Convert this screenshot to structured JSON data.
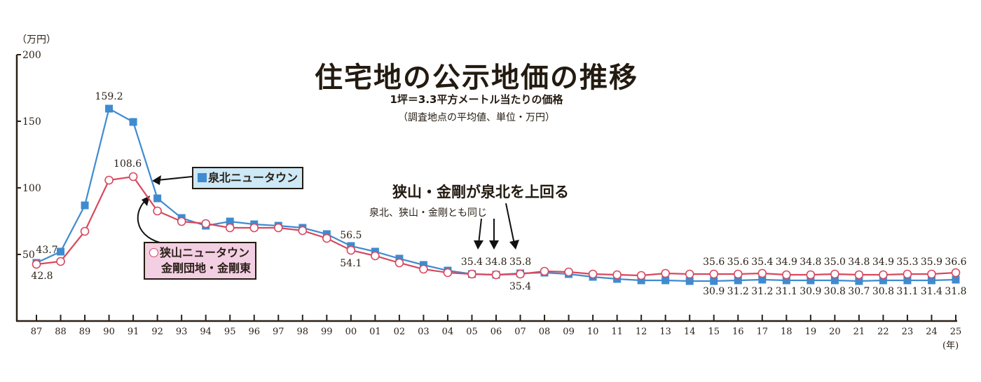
{
  "title": "住宅地の公示地価の推移",
  "subtitle": "1坪＝3.3平方メートル当たりの価格",
  "note": "（調査地点の平均値、単位・万円）",
  "y_unit": "（万円）",
  "x_unit": "(年)",
  "callout": {
    "headline": "狭山・金剛が泉北を上回る",
    "sub": "泉北、狭山・金剛とも同じ"
  },
  "legend": {
    "senboku": "泉北ニュータウン",
    "sayama_line1": "狭山ニュータウン",
    "sayama_line2": "金剛団地・金剛東"
  },
  "colors": {
    "senboku": "#3f8bd0",
    "sayama": "#d8485e",
    "axis": "#2a2118"
  },
  "chart_data": {
    "type": "line",
    "title": "住宅地の公示地価の推移",
    "subtitle": "1坪＝3.3平方メートル当たりの価格（調査地点の平均値、単位・万円）",
    "xlabel": "(年)",
    "ylabel": "（万円）",
    "yticks": [
      50,
      100,
      150,
      200
    ],
    "ylim": [
      30,
      200
    ],
    "grid": false,
    "legend_position": "inline-callouts",
    "categories": [
      "87",
      "88",
      "89",
      "90",
      "91",
      "92",
      "93",
      "94",
      "95",
      "96",
      "97",
      "98",
      "99",
      "00",
      "01",
      "02",
      "03",
      "04",
      "05",
      "06",
      "07",
      "08",
      "09",
      "10",
      "11",
      "12",
      "13",
      "14",
      "15",
      "16",
      "17",
      "18",
      "19",
      "20",
      "21",
      "22",
      "23",
      "24",
      "25"
    ],
    "series": [
      {
        "name": "泉北ニュータウン",
        "marker": "filled-square",
        "color": "#3f8bd0",
        "values": [
          43.7,
          52,
          86,
          159.2,
          149,
          92,
          77,
          71,
          74,
          72,
          71,
          70,
          65,
          56.5,
          52,
          47,
          43,
          38.5,
          35.4,
          34.8,
          35.8,
          36.5,
          35.3,
          33.5,
          32,
          31.2,
          31.0,
          30.8,
          30.9,
          31.2,
          31.2,
          31.1,
          30.9,
          30.8,
          30.7,
          30.8,
          31.1,
          31.4,
          31.8
        ],
        "labels": {
          "87": "43.7",
          "90": "159.2",
          "00": "56.5",
          "05": "35.4",
          "06": "34.8",
          "07": "35.8",
          "15": "30.9",
          "16": "31.2",
          "17": "31.2",
          "18": "31.1",
          "19": "30.9",
          "20": "30.8",
          "21": "30.7",
          "22": "30.8",
          "23": "31.1",
          "24": "31.4",
          "25": "31.8"
        }
      },
      {
        "name": "狭山ニュータウン・金剛団地・金剛東",
        "marker": "open-circle",
        "color": "#d8485e",
        "values": [
          42.8,
          45,
          67,
          105.5,
          108.6,
          82,
          74.5,
          73,
          70,
          70,
          70,
          68,
          62,
          54.1,
          49,
          44.5,
          40,
          36.5,
          35.4,
          34.8,
          35.4,
          37.2,
          37.0,
          35.5,
          35.2,
          34.9,
          35.8,
          35.6,
          35.6,
          35.6,
          35.4,
          34.9,
          34.8,
          35.0,
          34.8,
          34.9,
          35.3,
          35.9,
          36.6
        ],
        "labels": {
          "87": "42.8",
          "91": "108.6",
          "00": "54.1",
          "07": "35.4",
          "15": "35.6",
          "16": "35.6",
          "17": "35.4",
          "18": "34.9",
          "19": "34.8",
          "20": "35.0",
          "21": "34.8",
          "22": "34.9",
          "23": "35.3",
          "24": "35.9",
          "25": "36.6"
        }
      }
    ],
    "screen_y": {
      "senboku": [
        375,
        359,
        293,
        155,
        174,
        283,
        311,
        322,
        316,
        320,
        322,
        325,
        334,
        351,
        359,
        369,
        378,
        386,
        391,
        392,
        390,
        389,
        391,
        395,
        398,
        400,
        400,
        401,
        401,
        400,
        399,
        400,
        400,
        400,
        401,
        400,
        400,
        400,
        399
      ],
      "sayama": [
        377,
        373,
        330,
        257,
        252,
        301,
        316,
        319,
        325,
        325,
        325,
        329,
        340,
        357,
        365,
        375,
        384,
        389,
        391,
        392,
        391,
        387,
        388,
        391,
        392,
        393,
        390,
        391,
        391,
        391,
        390,
        392,
        392,
        391,
        392,
        392,
        391,
        391,
        389
      ]
    }
  }
}
